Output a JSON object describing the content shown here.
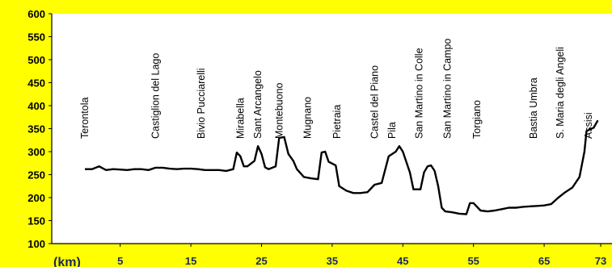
{
  "chart_data": {
    "type": "line",
    "xlabel": "(km)",
    "ylabel": "",
    "xlim": [
      0,
      73
    ],
    "ylim": [
      100,
      600
    ],
    "yticks": [
      100,
      150,
      200,
      250,
      300,
      350,
      400,
      450,
      500,
      550,
      600
    ],
    "xticks": [
      5,
      15,
      25,
      35,
      45,
      55,
      65,
      73
    ],
    "grid": false,
    "series": [
      {
        "points": [
          [
            0,
            262
          ],
          [
            1,
            262
          ],
          [
            2,
            268
          ],
          [
            3,
            260
          ],
          [
            4,
            262
          ],
          [
            5,
            261
          ],
          [
            6,
            260
          ],
          [
            7,
            262
          ],
          [
            8,
            262
          ],
          [
            9,
            260
          ],
          [
            10,
            265
          ],
          [
            11,
            265
          ],
          [
            12,
            263
          ],
          [
            13,
            262
          ],
          [
            14,
            263
          ],
          [
            15,
            263
          ],
          [
            16,
            262
          ],
          [
            17,
            260
          ],
          [
            18,
            260
          ],
          [
            19,
            260
          ],
          [
            20,
            258
          ],
          [
            21,
            262
          ],
          [
            21.5,
            298
          ],
          [
            22,
            290
          ],
          [
            22.5,
            268
          ],
          [
            23,
            268
          ],
          [
            24,
            280
          ],
          [
            24.5,
            312
          ],
          [
            25,
            295
          ],
          [
            25.5,
            266
          ],
          [
            26,
            262
          ],
          [
            27,
            268
          ],
          [
            27.5,
            330
          ],
          [
            28.2,
            332
          ],
          [
            28.8,
            295
          ],
          [
            29.5,
            280
          ],
          [
            30,
            262
          ],
          [
            31,
            245
          ],
          [
            32,
            242
          ],
          [
            33,
            240
          ],
          [
            33.5,
            298
          ],
          [
            34,
            300
          ],
          [
            34.5,
            278
          ],
          [
            35.5,
            270
          ],
          [
            36,
            225
          ],
          [
            37,
            215
          ],
          [
            38,
            210
          ],
          [
            39,
            210
          ],
          [
            40,
            212
          ],
          [
            41,
            228
          ],
          [
            42,
            232
          ],
          [
            43,
            290
          ],
          [
            44,
            300
          ],
          [
            44.5,
            312
          ],
          [
            45,
            300
          ],
          [
            46,
            255
          ],
          [
            46.5,
            218
          ],
          [
            47.5,
            218
          ],
          [
            48,
            255
          ],
          [
            48.5,
            268
          ],
          [
            49,
            270
          ],
          [
            49.5,
            258
          ],
          [
            50,
            225
          ],
          [
            50.5,
            178
          ],
          [
            51,
            170
          ],
          [
            52,
            168
          ],
          [
            53,
            165
          ],
          [
            54,
            164
          ],
          [
            54.5,
            188
          ],
          [
            55,
            188
          ],
          [
            56,
            172
          ],
          [
            57,
            170
          ],
          [
            58,
            172
          ],
          [
            59,
            175
          ],
          [
            60,
            178
          ],
          [
            61,
            178
          ],
          [
            62,
            180
          ],
          [
            63,
            181
          ],
          [
            64,
            182
          ],
          [
            65,
            183
          ],
          [
            66,
            186
          ],
          [
            67,
            200
          ],
          [
            68,
            212
          ],
          [
            69,
            222
          ],
          [
            70,
            245
          ],
          [
            70.7,
            300
          ],
          [
            71,
            345
          ],
          [
            72,
            352
          ],
          [
            72.6,
            368
          ]
        ]
      }
    ],
    "annotations": [
      {
        "text": "Terontola",
        "x": 0
      },
      {
        "text": "Castiglion del Lago",
        "x": 10
      },
      {
        "text": "Bivio Pucciarelli",
        "x": 16.5
      },
      {
        "text": "Mirabella",
        "x": 22
      },
      {
        "text": "Sant Arcangelo",
        "x": 24.5
      },
      {
        "text": "Montebuono",
        "x": 27.5
      },
      {
        "text": "Mugnano",
        "x": 31.5
      },
      {
        "text": "Pietraia",
        "x": 35.7
      },
      {
        "text": "Castel del Piano",
        "x": 41
      },
      {
        "text": "Pila",
        "x": 43.5
      },
      {
        "text": "San Martino in Colle",
        "x": 47.3
      },
      {
        "text": "San Martino in Campo",
        "x": 51.3
      },
      {
        "text": "Torgiano",
        "x": 55.5
      },
      {
        "text": "Bastia Umbra",
        "x": 63.5
      },
      {
        "text": "S. Maria degli Angeli",
        "x": 67.3
      },
      {
        "text": "Assisi",
        "x": 71.3
      }
    ],
    "colors": {
      "background": "#ffff00",
      "plot_background": "#ffffff",
      "line": "#000000",
      "x_tick_color": "#1a2a55"
    }
  }
}
